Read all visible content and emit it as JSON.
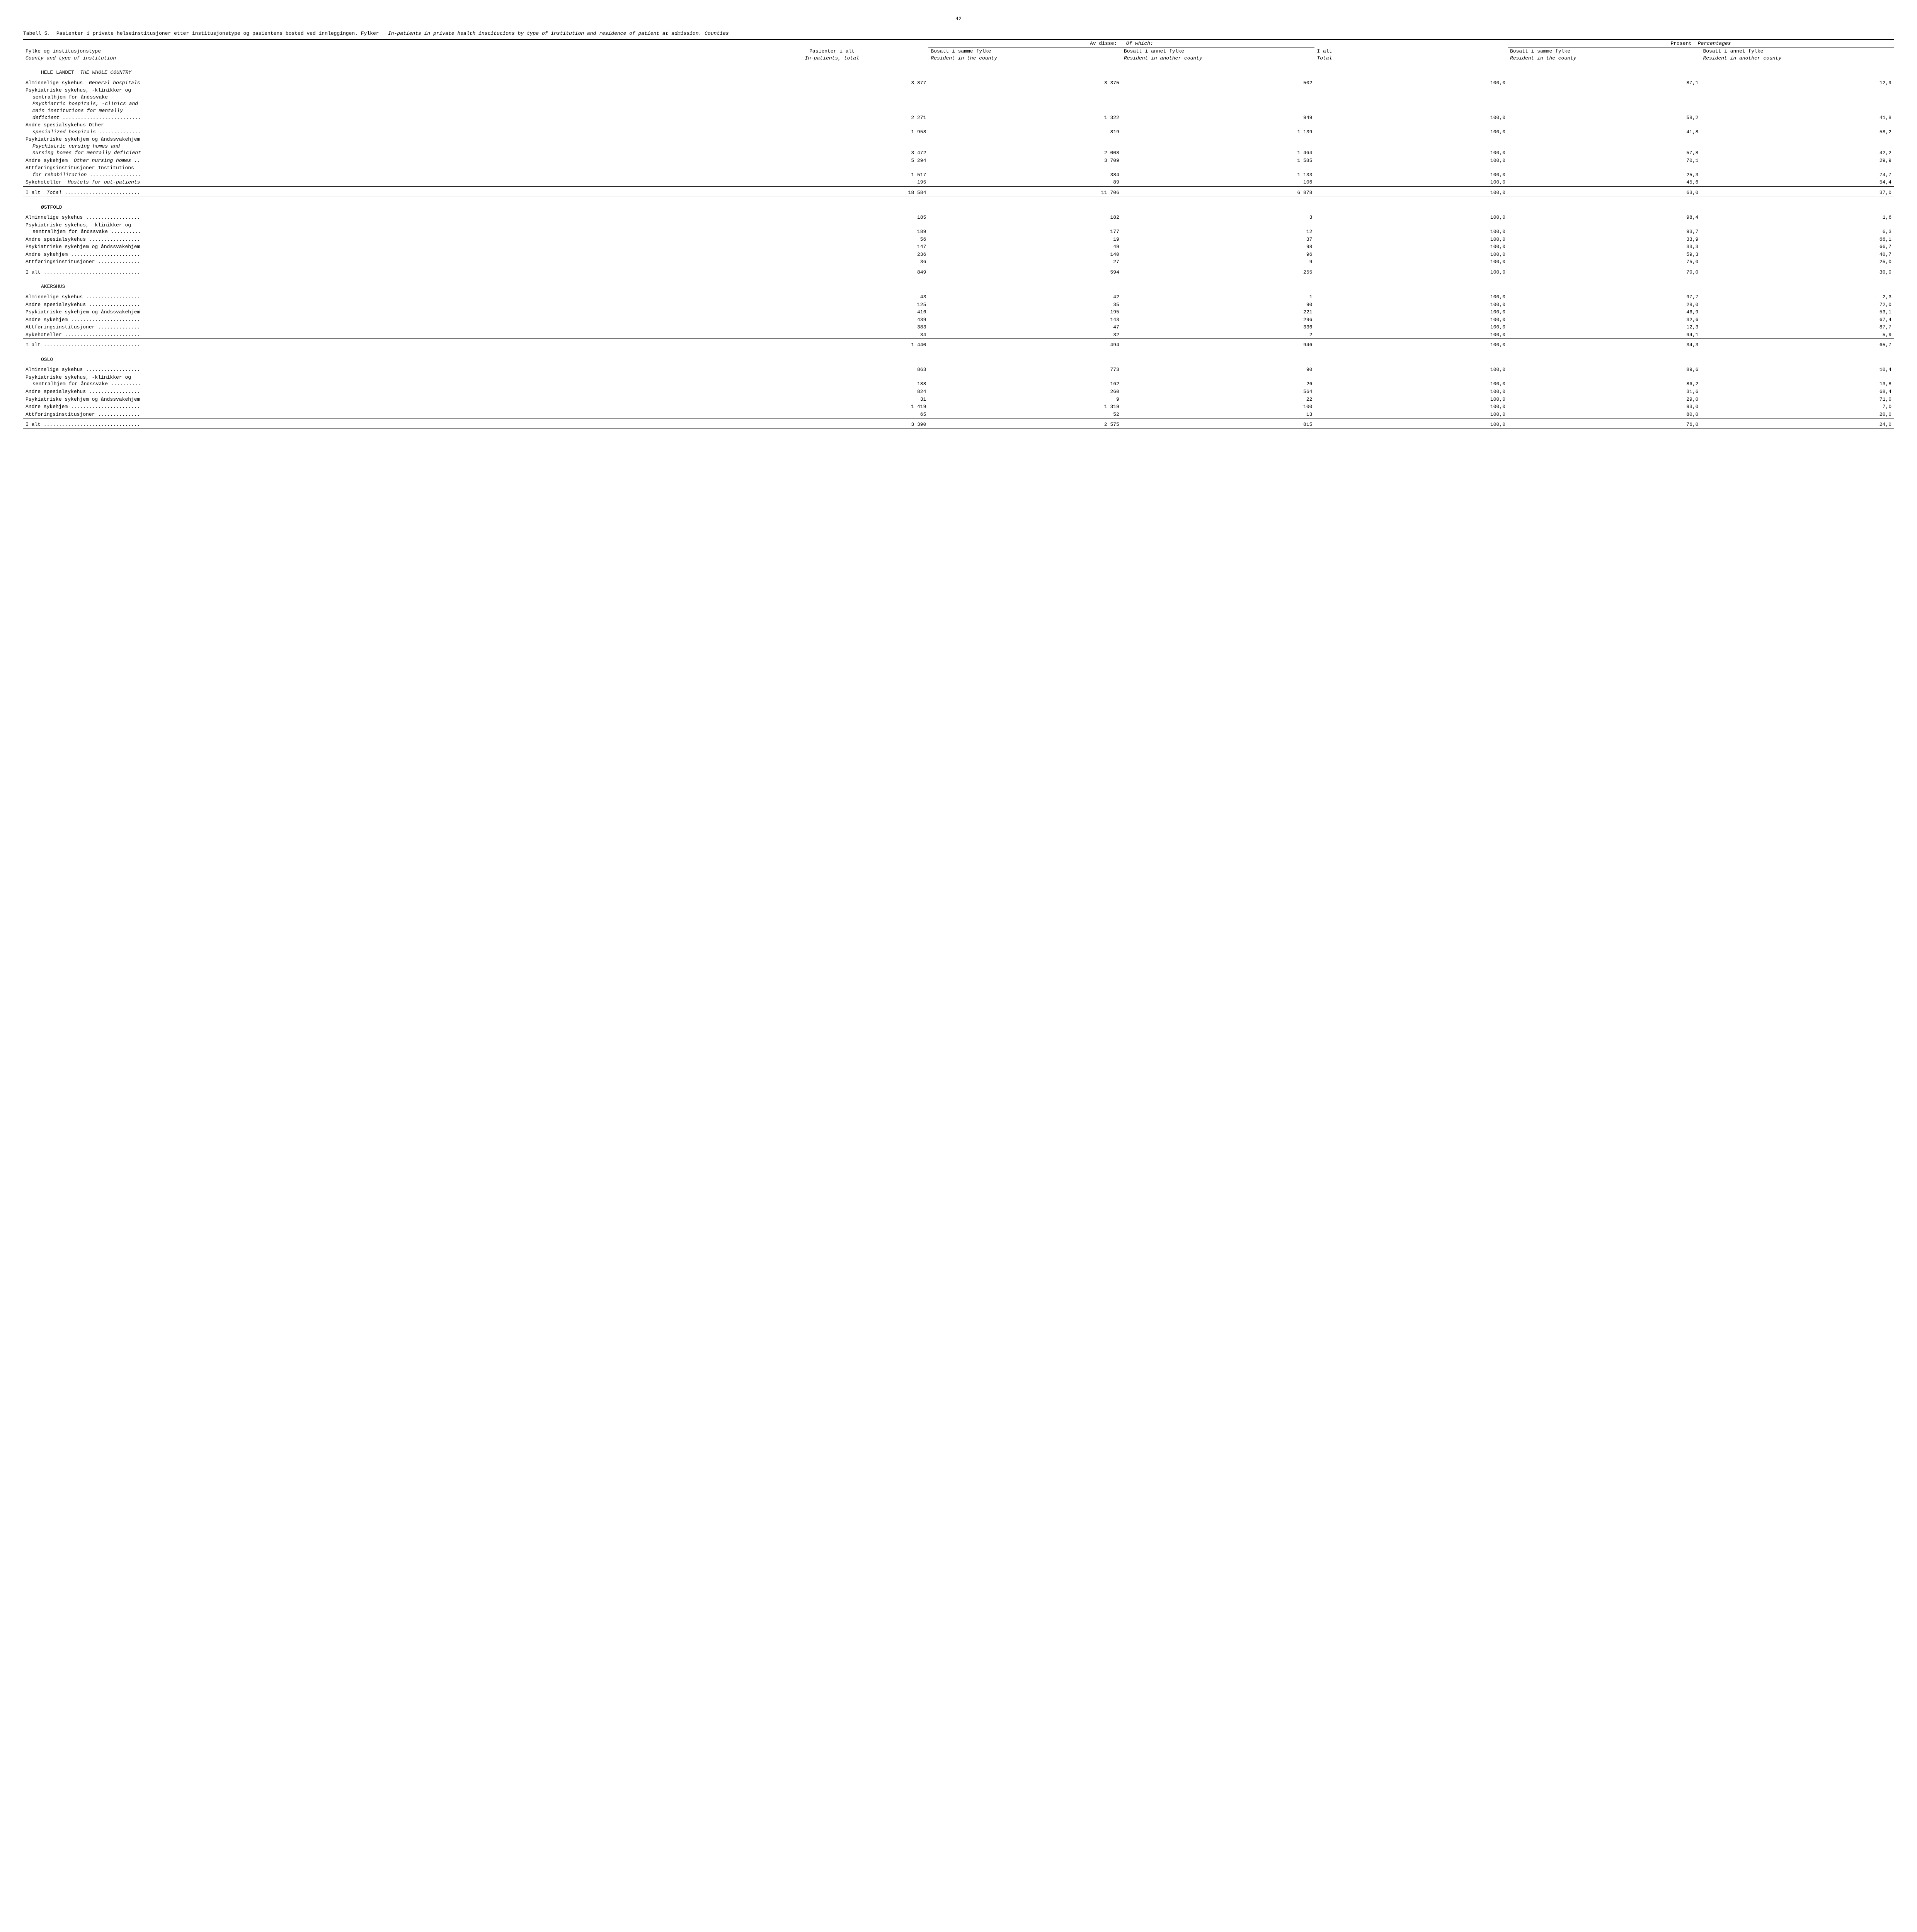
{
  "page_number": "42",
  "title": {
    "prefix": "Tabell 5.",
    "main_nb": "Pasienter i private helseinstitusjoner etter institusjonstype og pasientens bosted ved innleggingen.  Fylker",
    "main_en": "In-patients in private health institutions by type of institution and residence of patient at admission.   Counties"
  },
  "headers": {
    "col1_nb": "Fylke og institusjonstype",
    "col1_en": "County and type of institution",
    "col2_nb": "Pasienter i alt",
    "col2_en": "In-patients, total",
    "group1_nb": "Av disse:",
    "group1_en": "Of which:",
    "group2_nb": "Prosent",
    "group2_en": "Percentages",
    "col3_nb": "Bosatt i samme fylke",
    "col3_en": "Resident in the county",
    "col4_nb": "Bosatt i annet fylke",
    "col4_en": "Resident in another county",
    "col5_nb": "I alt",
    "col5_en": "Total",
    "col6_nb": "Bosatt i samme fylke",
    "col6_en": "Resident in the county",
    "col7_nb": "Bosatt i annet fylke",
    "col7_en": "Resident in another county"
  },
  "sections": [
    {
      "heading_nb": "HELE LANDET",
      "heading_en": "THE WHOLE COUNTRY",
      "rows": [
        {
          "label_nb": "Alminnelige sykehus",
          "label_en": "General hospitals",
          "v": [
            "3 877",
            "3 375",
            "502",
            "100,0",
            "87,1",
            "12,9"
          ]
        },
        {
          "multiline": true,
          "lines": [
            "Psykiatriske sykehus, -klinikker og",
            "  sentralhjem for åndssvake",
            "  Psychiatric hospitals, -clinics and",
            "  main institutions for mentally",
            "  deficient .........................."
          ],
          "v": [
            "2 271",
            "1 322",
            "949",
            "100,0",
            "58,2",
            "41,8"
          ]
        },
        {
          "multiline": true,
          "lines": [
            "Andre spesialsykehus  Other",
            "  specialized hospitals .............."
          ],
          "v": [
            "1 958",
            "819",
            "1 139",
            "100,0",
            "41,8",
            "58,2"
          ]
        },
        {
          "multiline": true,
          "lines": [
            "Psykiatriske sykehjem og åndssvakehjem",
            "  Psychiatric nursing homes and",
            "  nursing homes for mentally deficient"
          ],
          "v": [
            "3 472",
            "2 008",
            "1 464",
            "100,0",
            "57,8",
            "42,2"
          ]
        },
        {
          "label_nb": "Andre sykehjem",
          "label_en": "Other nursing homes ..",
          "v": [
            "5 294",
            "3 709",
            "1 585",
            "100,0",
            "70,1",
            "29,9"
          ]
        },
        {
          "multiline": true,
          "lines": [
            "Attføringsinstitusjoner  Institutions",
            "  for rehabilitation ................."
          ],
          "v": [
            "1 517",
            "384",
            "1 133",
            "100,0",
            "25,3",
            "74,7"
          ]
        },
        {
          "label_nb": "Sykehoteller",
          "label_en": "Hostels for out-patients",
          "v": [
            "195",
            "89",
            "106",
            "100,0",
            "45,6",
            "54,4"
          ],
          "underline": true
        },
        {
          "label_nb": "I alt",
          "label_en": "Total .........................",
          "v": [
            "18 584",
            "11 706",
            "6 878",
            "100,0",
            "63,0",
            "37,0"
          ],
          "underline": true,
          "spacer_before": true
        }
      ]
    },
    {
      "heading_nb": "ØSTFOLD",
      "rows": [
        {
          "label_nb": "Alminnelige sykehus ..................",
          "v": [
            "185",
            "182",
            "3",
            "100,0",
            "98,4",
            "1,6"
          ]
        },
        {
          "multiline": true,
          "lines": [
            "Psykiatriske sykehus, -klinikker og",
            "  sentralhjem for åndssvake .........."
          ],
          "v": [
            "189",
            "177",
            "12",
            "100,0",
            "93,7",
            "6,3"
          ]
        },
        {
          "label_nb": "Andre spesialsykehus .................",
          "v": [
            "56",
            "19",
            "37",
            "100,0",
            "33,9",
            "66,1"
          ]
        },
        {
          "label_nb": "Psykiatriske sykehjem og åndssvakehjem",
          "v": [
            "147",
            "49",
            "98",
            "100,0",
            "33,3",
            "66,7"
          ]
        },
        {
          "label_nb": "Andre sykehjem .......................",
          "v": [
            "236",
            "140",
            "96",
            "100,0",
            "59,3",
            "40,7"
          ]
        },
        {
          "label_nb": "Attføringsinstitusjoner ..............",
          "v": [
            "36",
            "27",
            "9",
            "100,0",
            "75,0",
            "25,0"
          ],
          "underline": true
        },
        {
          "label_nb": "I alt ................................",
          "v": [
            "849",
            "594",
            "255",
            "100,0",
            "70,0",
            "30,0"
          ],
          "underline": true,
          "spacer_before": true
        }
      ]
    },
    {
      "heading_nb": "AKERSHUS",
      "rows": [
        {
          "label_nb": "Alminnelige sykehus ..................",
          "v": [
            "43",
            "42",
            "1",
            "100,0",
            "97,7",
            "2,3"
          ]
        },
        {
          "label_nb": "Andre spesialsykehus .................",
          "v": [
            "125",
            "35",
            "90",
            "100,0",
            "28,0",
            "72,0"
          ]
        },
        {
          "label_nb": "Psykiatriske sykehjem og åndssvakehjem",
          "v": [
            "416",
            "195",
            "221",
            "100,0",
            "46,9",
            "53,1"
          ]
        },
        {
          "label_nb": "Andre sykehjem .......................",
          "v": [
            "439",
            "143",
            "296",
            "100,0",
            "32,6",
            "67,4"
          ]
        },
        {
          "label_nb": "Attføringsinstitusjoner ..............",
          "v": [
            "383",
            "47",
            "336",
            "100,0",
            "12,3",
            "87,7"
          ]
        },
        {
          "label_nb": "Sykehoteller .........................",
          "v": [
            "34",
            "32",
            "2",
            "100,0",
            "94,1",
            "5,9"
          ],
          "underline": true
        },
        {
          "label_nb": "I alt ................................",
          "v": [
            "1 440",
            "494",
            "946",
            "100,0",
            "34,3",
            "65,7"
          ],
          "underline": true,
          "spacer_before": true
        }
      ]
    },
    {
      "heading_nb": "OSLO",
      "rows": [
        {
          "label_nb": "Alminnelige sykehus ..................",
          "v": [
            "863",
            "773",
            "90",
            "100,0",
            "89,6",
            "10,4"
          ]
        },
        {
          "multiline": true,
          "lines": [
            "Psykiatriske sykehus, -klinikker og",
            "  sentralhjem for åndssvake .........."
          ],
          "v": [
            "188",
            "162",
            "26",
            "100,0",
            "86,2",
            "13,8"
          ]
        },
        {
          "label_nb": "Andre spesialsykehus .................",
          "v": [
            "824",
            "260",
            "564",
            "100,0",
            "31,6",
            "68,4"
          ]
        },
        {
          "label_nb": "Psykiatriske sykehjem og åndssvakehjem",
          "v": [
            "31",
            "9",
            "22",
            "100,0",
            "29,0",
            "71,0"
          ]
        },
        {
          "label_nb": "Andre sykehjem .......................",
          "v": [
            "1 419",
            "1 319",
            "100",
            "100,0",
            "93,0",
            "7,0"
          ]
        },
        {
          "label_nb": "Attføringsinstitusjoner ..............",
          "v": [
            "65",
            "52",
            "13",
            "100,0",
            "80,0",
            "20,0"
          ],
          "underline": true
        },
        {
          "label_nb": "I alt ................................",
          "v": [
            "3 390",
            "2 575",
            "815",
            "100,0",
            "76,0",
            "24,0"
          ],
          "underline": true,
          "spacer_before": true
        }
      ]
    }
  ],
  "style": {
    "background_color": "#ffffff",
    "text_color": "#000000",
    "font_family": "Courier New",
    "font_size_pt": 13,
    "rule_color": "#000000"
  }
}
